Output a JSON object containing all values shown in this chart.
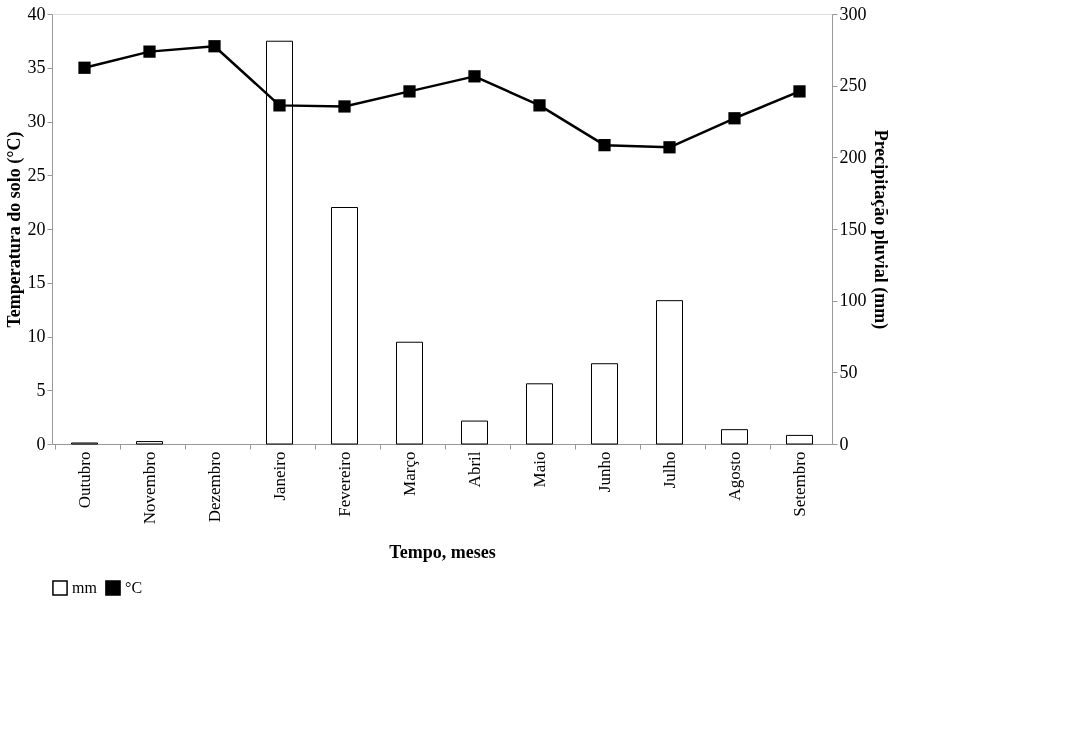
{
  "chart_data": {
    "type": "bar",
    "xlabel": "Tempo, meses",
    "ylabel": "Temperatura do solo (°C)",
    "y2label": "Precipitação pluvial (mm)",
    "categories": [
      "Outubro",
      "Novembro",
      "Dezembro",
      "Janeiro",
      "Fevereiro",
      "Março",
      "Abril",
      "Maio",
      "Junho",
      "Julho",
      "Agosto",
      "Setembro"
    ],
    "series": [
      {
        "name": "mm",
        "axis": "y2",
        "color": "#ffffff",
        "values": [
          0.7,
          1.7,
          null,
          281,
          165,
          71,
          16,
          42,
          56,
          100,
          10,
          6
        ]
      },
      {
        "name": "°C",
        "type": "line",
        "color": "#000000",
        "marker": "square",
        "values": [
          35.0,
          36.5,
          37.0,
          31.5,
          31.4,
          32.8,
          34.2,
          31.5,
          27.8,
          27.6,
          30.3,
          32.8
        ]
      }
    ],
    "ylim": [
      0,
      40
    ],
    "yticks": [
      0,
      5,
      10,
      15,
      20,
      25,
      30,
      35,
      40
    ],
    "y2lim": [
      0,
      300
    ],
    "y2ticks": [
      0,
      50,
      100,
      150,
      200,
      250,
      300
    ],
    "grid": false,
    "legend": "bottom"
  }
}
